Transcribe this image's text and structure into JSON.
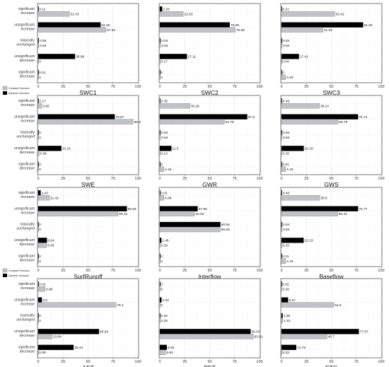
{
  "categories": [
    "significant increase",
    "unsignificant increase",
    "basically unchanged",
    "unsignificant decrease",
    "significant decrease"
  ],
  "category_lines": [
    [
      "significant",
      "increase"
    ],
    [
      "unsignificant",
      "increase"
    ],
    [
      "basically",
      "unchanged"
    ],
    [
      "unsignificant",
      "decrease"
    ],
    [
      "significant",
      "decrease"
    ]
  ],
  "legend": {
    "constant": "Constant Scenario",
    "dynamic": "Dynamic Scenario"
  },
  "colors": {
    "constant": "#bfc3c7",
    "dynamic": "#000000"
  },
  "chart_data": [
    {
      "type": "bar",
      "title": "SWC1",
      "xlim": [
        0,
        100
      ],
      "xticks": [
        0,
        25,
        50,
        75,
        100
      ],
      "dynamic": [
        0.11,
        62.45,
        0.55,
        36.88,
        0.01
      ],
      "constant": [
        31.43,
        67.93,
        0.64,
        0,
        0
      ]
    },
    {
      "type": "bar",
      "title": "SWC2",
      "xlim": [
        0,
        100
      ],
      "xticks": [
        0,
        25,
        50,
        75,
        100
      ],
      "dynamic": [
        2.26,
        70.08,
        0.54,
        27.11,
        0
      ],
      "constant": [
        23.53,
        75.66,
        0.64,
        0.17,
        0
      ]
    },
    {
      "type": "bar",
      "title": "SWC3",
      "xlim": [
        0,
        100
      ],
      "xticks": [
        0,
        25,
        50,
        75,
        100
      ],
      "dynamic": [
        0.21,
        81.83,
        0.54,
        17.41,
        0
      ],
      "constant": [
        53.42,
        41.62,
        0.64,
        0.04,
        4.29
      ]
    },
    {
      "type": "bar",
      "title": "SWE",
      "xlim": [
        0,
        100
      ],
      "xticks": [
        0,
        25,
        50,
        75,
        100
      ],
      "dynamic": [
        0.17,
        76.67,
        0,
        23.16,
        0
      ],
      "constant": [
        3.66,
        95.3,
        0,
        0.96,
        0
      ]
    },
    {
      "type": "bar",
      "title": "GWR",
      "xlim": [
        0,
        100
      ],
      "xticks": [
        0,
        25,
        50,
        75,
        100
      ],
      "dynamic": [
        0.35,
        87.6,
        0.54,
        11.5,
        0
      ],
      "constant": [
        30.26,
        64.79,
        0.64,
        0.13,
        4.18
      ]
    },
    {
      "type": "bar",
      "title": "GWS",
      "xlim": [
        0,
        100
      ],
      "xticks": [
        0,
        25,
        50,
        75,
        100
      ],
      "dynamic": [
        0.45,
        76.71,
        0.54,
        22.29,
        0.01
      ],
      "constant": [
        38.14,
        56.79,
        0.64,
        0.25,
        4.18
      ]
    },
    {
      "type": "bar",
      "title": "SurfRunoff",
      "xlim": [
        0,
        100
      ],
      "xticks": [
        0,
        25,
        50,
        75,
        100
      ],
      "dynamic": [
        2.43,
        88.93,
        0,
        8.64,
        0
      ],
      "constant": [
        11.42,
        80.12,
        0,
        8.45,
        0
      ]
    },
    {
      "type": "bar",
      "title": "Interflow",
      "xlim": [
        0,
        100
      ],
      "xticks": [
        0,
        25,
        50,
        75,
        100
      ],
      "dynamic": [
        0.02,
        37.89,
        60.64,
        1.46,
        0
      ],
      "constant": [
        4.08,
        34.94,
        60.69,
        0.29,
        0
      ]
    },
    {
      "type": "bar",
      "title": "Baseflow",
      "xlim": [
        0,
        100
      ],
      "xticks": [
        0,
        25,
        50,
        75,
        100
      ],
      "dynamic": [
        0.45,
        76.77,
        0.54,
        22.23,
        0.01
      ],
      "constant": [
        38.5,
        56.44,
        0.64,
        0.25,
        4.18
      ]
    },
    {
      "type": "bar",
      "title": "AET",
      "xlim": [
        0,
        100
      ],
      "xticks": [
        0,
        25,
        50,
        75,
        100
      ],
      "dynamic": [
        0.02,
        3.6,
        0,
        60.94,
        35.44
      ],
      "constant": [
        6.96,
        78.1,
        0,
        13.88,
        0.06
      ]
    },
    {
      "type": "bar",
      "title": "PET",
      "xlim": [
        0,
        100
      ],
      "xticks": [
        0,
        25,
        50,
        75,
        100
      ],
      "dynamic": [
        0,
        1.63,
        0.25,
        90.97,
        6.94
      ],
      "constant": [
        0,
        0,
        0.25,
        93.91,
        5.84
      ]
    },
    {
      "type": "bar",
      "title": "ETC",
      "xlim": [
        0,
        100
      ],
      "xticks": [
        0,
        25,
        50,
        75,
        100
      ],
      "dynamic": [
        0.02,
        6.57,
        1.08,
        77.57,
        14.75
      ],
      "constant": [
        0.26,
        52.5,
        1.32,
        45.7,
        0.23
      ]
    }
  ]
}
